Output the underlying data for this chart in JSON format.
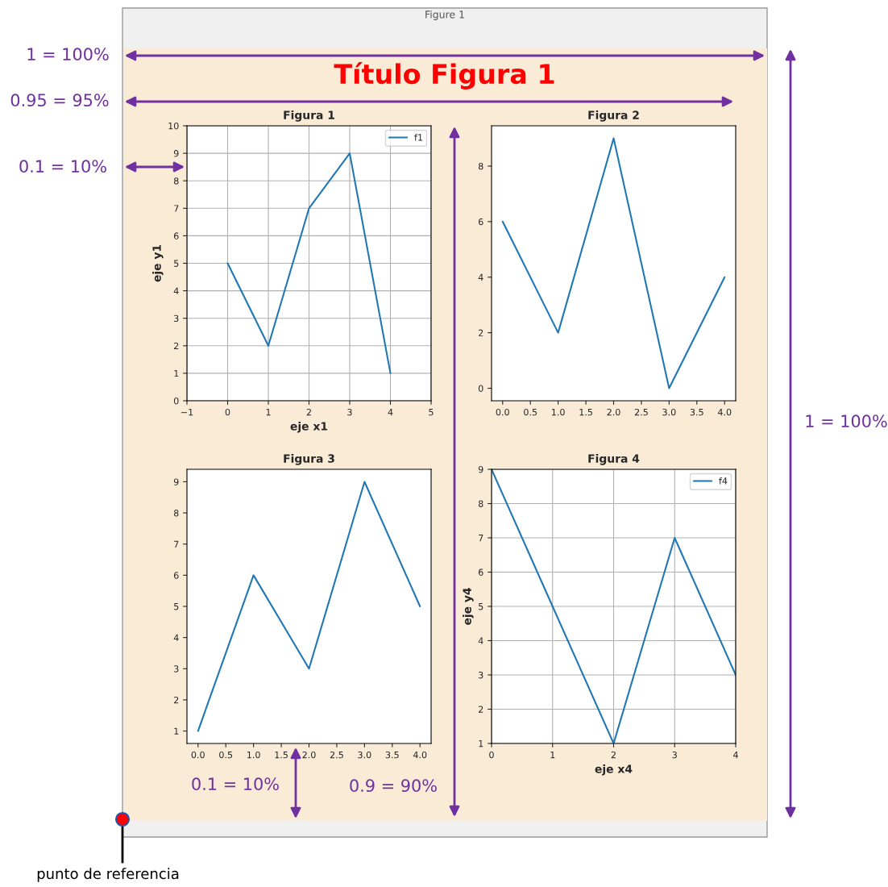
{
  "chart_data": [
    {
      "type": "line",
      "title": "Figura 1",
      "xlabel": "eje x1",
      "ylabel": "eje y1",
      "x": [
        0,
        1,
        2,
        3,
        4
      ],
      "series": [
        {
          "name": "f1",
          "color": "#1f77b4",
          "values": [
            5,
            2,
            7,
            9,
            1
          ]
        }
      ],
      "xlim": [
        -1,
        5
      ],
      "xticks": [
        {
          "value": -1,
          "label": "−1"
        },
        0,
        1,
        2,
        3,
        4,
        5
      ],
      "ylim": [
        0,
        10
      ],
      "yticks": [
        0,
        1,
        2,
        3,
        4,
        5,
        6,
        7,
        8,
        9,
        10
      ],
      "grid": true,
      "legend": "top right"
    },
    {
      "type": "line",
      "title": "Figura 2",
      "x": [
        0,
        1,
        2,
        3,
        4
      ],
      "series": [
        {
          "color": "#1f77b4",
          "values": [
            6,
            2,
            9,
            0,
            4
          ]
        }
      ],
      "xlim": [
        -0.2,
        4.2
      ],
      "xticks": [
        {
          "value": 0,
          "label": "0.0"
        },
        0.5,
        {
          "value": 1,
          "label": "1.0"
        },
        1.5,
        {
          "value": 2,
          "label": "2.0"
        },
        2.5,
        {
          "value": 3,
          "label": "3.0"
        },
        3.5,
        {
          "value": 4,
          "label": "4.0"
        }
      ],
      "ylim": [
        -0.45,
        9.45
      ],
      "yticks": [
        0,
        2,
        4,
        6,
        8
      ]
    },
    {
      "type": "line",
      "title": "Figura 3",
      "x": [
        0,
        1,
        2,
        3,
        4
      ],
      "series": [
        {
          "color": "#1f77b4",
          "values": [
            1,
            6,
            3,
            9,
            5
          ]
        }
      ],
      "xlim": [
        -0.2,
        4.2
      ],
      "xticks": [
        {
          "value": 0,
          "label": "0.0"
        },
        0.5,
        {
          "value": 1,
          "label": "1.0"
        },
        1.5,
        {
          "value": 2,
          "label": "2.0"
        },
        2.5,
        {
          "value": 3,
          "label": "3.0"
        },
        3.5,
        {
          "value": 4,
          "label": "4.0"
        }
      ],
      "ylim": [
        0.6,
        9.4
      ],
      "yticks": [
        1,
        2,
        3,
        4,
        5,
        6,
        7,
        8,
        9
      ]
    },
    {
      "type": "line",
      "title": "Figura 4",
      "xlabel": "eje x4",
      "ylabel": "eje y4",
      "x": [
        0,
        1,
        2,
        3,
        4
      ],
      "series": [
        {
          "name": "f4",
          "color": "#1f77b4",
          "values": [
            9,
            5,
            1,
            7,
            3
          ]
        }
      ],
      "xlim": [
        0,
        4
      ],
      "xticks": [
        0,
        1,
        2,
        3,
        4
      ],
      "ylim": [
        1,
        9
      ],
      "yticks": [
        1,
        2,
        3,
        4,
        5,
        6,
        7,
        8,
        9
      ],
      "grid": true,
      "legend": "top right"
    },
    {
      "type": "other",
      "title": "Título Figura 1",
      "annotations": [
        "Figure 1",
        "1 = 100%",
        "0.95 = 95%",
        "0.1 = 10%",
        "1 = 100%",
        "0.1 = 10%",
        "0.9 = 90%",
        "punto de referencia"
      ]
    }
  ]
}
